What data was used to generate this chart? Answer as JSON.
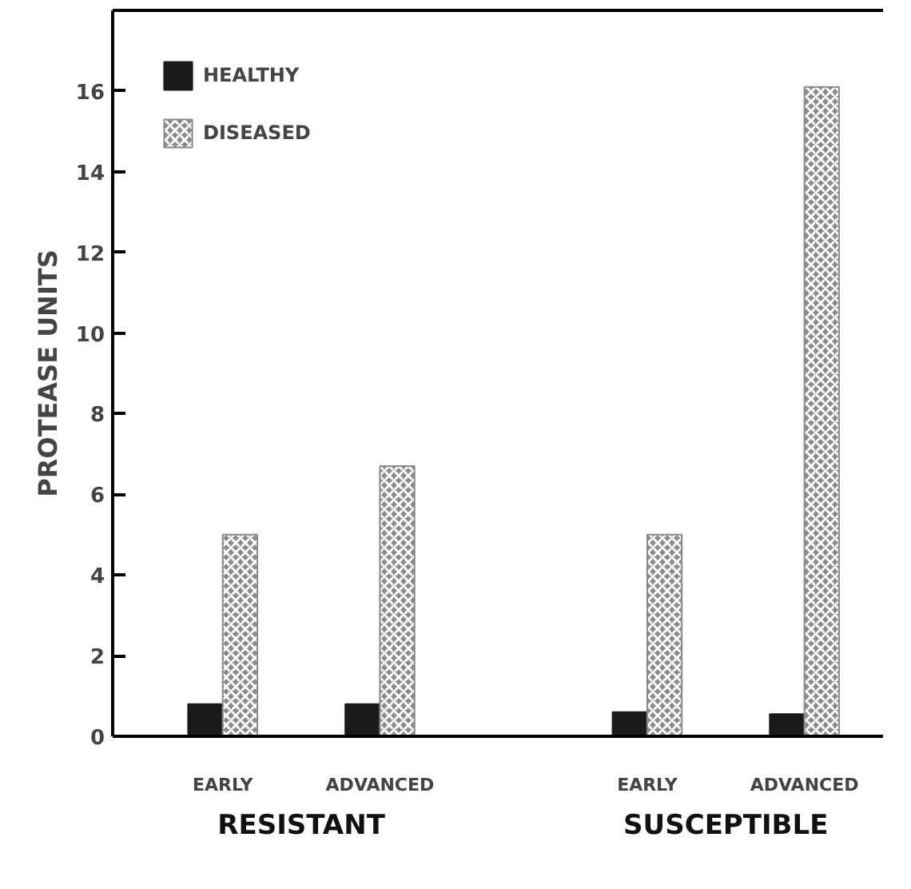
{
  "chart_data": {
    "type": "bar",
    "ylabel": "PROTEASE UNITS",
    "categories": [
      "EARLY",
      "ADVANCED",
      "EARLY",
      "ADVANCED"
    ],
    "series": [
      {
        "name": "HEALTHY",
        "color": "#1a1a1a",
        "values": [
          0.8,
          0.8,
          0.6,
          0.55
        ]
      },
      {
        "name": "DISEASED",
        "color": "#8a8a8a",
        "values": [
          5.0,
          6.7,
          5.0,
          16.1
        ]
      }
    ],
    "annotations": [
      "RESISTANT",
      "SUSCEPTIBLE"
    ],
    "ylim": [
      0,
      18
    ],
    "yticks": [
      0,
      2,
      4,
      6,
      8,
      10,
      12,
      14,
      16
    ],
    "grid": false,
    "legend": "top left"
  }
}
